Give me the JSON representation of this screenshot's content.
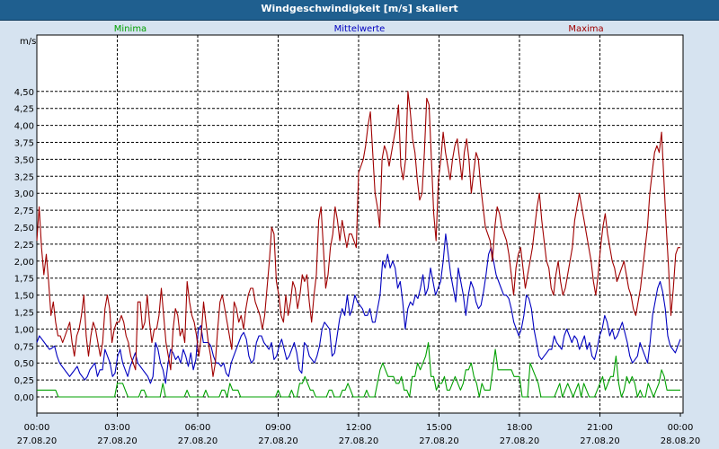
{
  "window": {
    "title": "Windgeschwindigkeit [m/s] skaliert"
  },
  "colors": {
    "background": "#d6e3f0",
    "plot_background": "#ffffff",
    "minima": "#00a000",
    "mittelwerte": "#0000c0",
    "maxima": "#a00000"
  },
  "chart_data": {
    "type": "line",
    "title": "Windgeschwindigkeit [m/s] skaliert",
    "ylabel": "m/s",
    "xlabel": "",
    "ylim": [
      -0.25,
      4.6
    ],
    "grid": true,
    "legend_placement": "top",
    "y_ticks": [
      "0,00",
      "0,25",
      "0,50",
      "0,75",
      "1,00",
      "1,25",
      "1,50",
      "1,75",
      "2,00",
      "2,25",
      "2,50",
      "2,75",
      "3,00",
      "3,25",
      "3,50",
      "3,75",
      "4,00",
      "4,25",
      "4,50"
    ],
    "x_ticks": [
      {
        "time": "00:00",
        "date": "27.08.20"
      },
      {
        "time": "03:00",
        "date": "27.08.20"
      },
      {
        "time": "06:00",
        "date": "27.08.20"
      },
      {
        "time": "09:00",
        "date": "27.08.20"
      },
      {
        "time": "12:00",
        "date": "27.08.20"
      },
      {
        "time": "15:00",
        "date": "27.08.20"
      },
      {
        "time": "18:00",
        "date": "27.08.20"
      },
      {
        "time": "21:00",
        "date": "27.08.20"
      },
      {
        "time": "00:00",
        "date": "28.08.20"
      }
    ],
    "series": [
      {
        "name": "Minima",
        "color": "#00a000",
        "values": [
          0.1,
          0.1,
          0.1,
          0.1,
          0.1,
          0.1,
          0.1,
          0.1,
          0.0,
          0.0,
          0.0,
          0.0,
          0.0,
          0.0,
          0.0,
          0.0,
          0.0,
          0.0,
          0.0,
          0.0,
          0.0,
          0.0,
          0.0,
          0.0,
          0.0,
          0.0,
          0.0,
          0.0,
          0.0,
          0.0,
          0.2,
          0.2,
          0.2,
          0.1,
          0.0,
          0.0,
          0.0,
          0.0,
          0.0,
          0.1,
          0.1,
          0.0,
          0.0,
          0.0,
          0.0,
          0.0,
          0.0,
          0.2,
          0.0,
          0.0,
          0.0,
          0.0,
          0.0,
          0.0,
          0.0,
          0.0,
          0.1,
          0.0,
          0.0,
          0.0,
          0.0,
          0.0,
          0.0,
          0.1,
          0.0,
          0.0,
          0.0,
          0.0,
          0.0,
          0.1,
          0.1,
          0.0,
          0.2,
          0.1,
          0.1,
          0.1,
          0.0,
          0.0,
          0.0,
          0.0,
          0.0,
          0.0,
          0.0,
          0.0,
          0.0,
          0.0,
          0.0,
          0.0,
          0.0,
          0.0,
          0.1,
          0.0,
          0.0,
          0.0,
          0.0,
          0.1,
          0.0,
          0.0,
          0.2,
          0.2,
          0.3,
          0.2,
          0.1,
          0.1,
          0.0,
          0.0,
          0.0,
          0.0,
          0.0,
          0.1,
          0.1,
          0.0,
          0.0,
          0.0,
          0.1,
          0.1,
          0.2,
          0.1,
          0.0,
          0.0,
          0.0,
          0.0,
          0.0,
          0.1,
          0.0,
          0.0,
          0.0,
          0.2,
          0.4,
          0.5,
          0.4,
          0.3,
          0.3,
          0.3,
          0.2,
          0.2,
          0.3,
          0.1,
          0.1,
          0.0,
          0.3,
          0.3,
          0.5,
          0.4,
          0.5,
          0.6,
          0.8,
          0.3,
          0.3,
          0.1,
          0.2,
          0.2,
          0.3,
          0.1,
          0.1,
          0.2,
          0.3,
          0.2,
          0.1,
          0.2,
          0.4,
          0.4,
          0.5,
          0.3,
          0.2,
          0.0,
          0.2,
          0.1,
          0.1,
          0.1,
          0.4,
          0.7,
          0.4,
          0.4,
          0.4,
          0.4,
          0.4,
          0.4,
          0.3,
          0.3,
          0.3,
          0.0,
          0.0,
          0.0,
          0.5,
          0.4,
          0.3,
          0.2,
          0.0,
          0.0,
          0.0,
          0.0,
          0.0,
          0.0,
          0.1,
          0.2,
          0.0,
          0.1,
          0.2,
          0.1,
          0.0,
          0.1,
          0.2,
          0.0,
          0.2,
          0.1,
          0.0,
          0.0,
          0.0,
          0.1,
          0.2,
          0.3,
          0.1,
          0.2,
          0.3,
          0.3,
          0.6,
          0.2,
          0.0,
          0.1,
          0.3,
          0.2,
          0.3,
          0.2,
          0.0,
          0.1,
          0.0,
          0.0,
          0.2,
          0.1,
          0.0,
          0.1,
          0.2,
          0.4,
          0.3,
          0.1,
          0.1,
          0.1,
          0.1,
          0.1,
          0.1
        ]
      },
      {
        "name": "Mittelwerte",
        "color": "#0000c0",
        "values": [
          0.8,
          0.9,
          0.85,
          0.8,
          0.75,
          0.7,
          0.72,
          0.75,
          0.6,
          0.5,
          0.45,
          0.4,
          0.35,
          0.3,
          0.35,
          0.4,
          0.45,
          0.35,
          0.3,
          0.25,
          0.3,
          0.4,
          0.45,
          0.5,
          0.3,
          0.4,
          0.4,
          0.7,
          0.6,
          0.5,
          0.3,
          0.35,
          0.6,
          0.7,
          0.5,
          0.4,
          0.3,
          0.45,
          0.55,
          0.65,
          0.5,
          0.45,
          0.4,
          0.35,
          0.3,
          0.2,
          0.3,
          0.8,
          0.7,
          0.5,
          0.4,
          0.2,
          0.5,
          0.7,
          0.65,
          0.55,
          0.6,
          0.5,
          0.7,
          0.6,
          0.45,
          0.65,
          0.4,
          0.55,
          1.0,
          1.05,
          0.8,
          0.8,
          0.8,
          0.75,
          0.6,
          0.5,
          0.5,
          0.45,
          0.5,
          0.35,
          0.3,
          0.5,
          0.6,
          0.7,
          0.8,
          0.9,
          0.95,
          0.85,
          0.6,
          0.5,
          0.55,
          0.8,
          0.9,
          0.9,
          0.8,
          0.75,
          0.7,
          0.8,
          0.55,
          0.6,
          0.75,
          0.85,
          0.7,
          0.55,
          0.6,
          0.7,
          0.8,
          0.65,
          0.4,
          0.35,
          0.8,
          0.75,
          0.6,
          0.55,
          0.5,
          0.6,
          0.75,
          1.0,
          1.1,
          1.05,
          1.0,
          0.6,
          0.65,
          0.9,
          1.15,
          1.3,
          1.2,
          1.5,
          1.2,
          1.3,
          1.5,
          1.4,
          1.35,
          1.3,
          1.2,
          1.2,
          1.3,
          1.1,
          1.1,
          1.3,
          1.5,
          2.0,
          1.9,
          2.1,
          1.9,
          2.0,
          1.9,
          1.6,
          1.7,
          1.4,
          1.0,
          1.3,
          1.4,
          1.35,
          1.5,
          1.45,
          1.6,
          1.8,
          1.5,
          1.6,
          1.9,
          1.7,
          1.5,
          1.6,
          1.7,
          2.0,
          2.4,
          2.1,
          1.8,
          1.6,
          1.4,
          1.9,
          1.7,
          1.5,
          1.2,
          1.5,
          1.7,
          1.6,
          1.4,
          1.3,
          1.35,
          1.55,
          1.8,
          2.1,
          2.2,
          2.0,
          1.8,
          1.7,
          1.6,
          1.5,
          1.5,
          1.45,
          1.3,
          1.1,
          1.0,
          0.9,
          1.0,
          1.2,
          1.5,
          1.45,
          1.3,
          1.0,
          0.8,
          0.6,
          0.55,
          0.6,
          0.65,
          0.7,
          0.7,
          0.9,
          0.8,
          0.75,
          0.7,
          0.9,
          1.0,
          0.9,
          0.8,
          0.9,
          0.85,
          0.7,
          0.8,
          0.9,
          0.7,
          0.8,
          0.6,
          0.55,
          0.7,
          0.9,
          1.0,
          1.2,
          1.1,
          0.9,
          1.0,
          0.85,
          0.9,
          1.0,
          1.1,
          0.95,
          0.8,
          0.6,
          0.5,
          0.55,
          0.6,
          0.8,
          0.7,
          0.6,
          0.5,
          0.8,
          1.2,
          1.4,
          1.6,
          1.7,
          1.55,
          1.3,
          0.9,
          0.75,
          0.7,
          0.65,
          0.75,
          0.85
        ]
      },
      {
        "name": "Maxima",
        "color": "#a00000",
        "values": [
          2.3,
          2.8,
          2.2,
          1.8,
          2.1,
          1.7,
          1.2,
          1.4,
          1.1,
          0.9,
          0.9,
          0.8,
          0.9,
          1.0,
          1.1,
          0.8,
          0.6,
          0.9,
          1.0,
          1.2,
          1.5,
          0.9,
          0.6,
          0.9,
          1.1,
          1.0,
          0.8,
          0.6,
          0.8,
          1.3,
          1.5,
          1.3,
          0.8,
          1.0,
          1.1,
          1.1,
          1.2,
          1.1,
          0.9,
          0.8,
          0.6,
          0.5,
          0.4,
          1.4,
          1.4,
          1.0,
          1.1,
          1.5,
          1.1,
          0.8,
          1.0,
          1.0,
          1.2,
          1.6,
          1.2,
          0.8,
          0.6,
          0.4,
          1.0,
          1.3,
          1.2,
          0.9,
          1.0,
          0.8,
          1.7,
          1.4,
          1.2,
          1.1,
          0.9,
          0.6,
          0.9,
          1.4,
          1.1,
          0.8,
          0.6,
          0.3,
          0.5,
          1.0,
          1.4,
          1.5,
          1.3,
          1.1,
          0.9,
          0.7,
          1.4,
          1.3,
          1.1,
          1.2,
          1.0,
          1.3,
          1.5,
          1.6,
          1.6,
          1.4,
          1.3,
          1.2,
          1.0,
          1.2,
          1.6,
          2.0,
          2.5,
          2.4,
          1.7,
          1.5,
          1.2,
          1.1,
          1.5,
          1.2,
          1.4,
          1.7,
          1.6,
          1.3,
          1.5,
          1.8,
          1.7,
          1.8,
          1.4,
          1.1,
          1.5,
          1.8,
          2.6,
          2.8,
          2.2,
          1.6,
          1.8,
          2.2,
          2.4,
          2.8,
          2.6,
          2.3,
          2.6,
          2.4,
          2.2,
          2.4,
          2.4,
          2.3,
          2.2,
          3.3,
          3.4,
          3.5,
          3.7,
          4.0,
          4.2,
          3.6,
          3.0,
          2.8,
          2.5,
          3.5,
          3.7,
          3.6,
          3.4,
          3.6,
          3.8,
          4.0,
          4.3,
          3.4,
          3.2,
          3.5,
          4.5,
          4.2,
          3.8,
          3.6,
          3.2,
          2.9,
          3.0,
          3.6,
          4.4,
          4.3,
          3.5,
          2.7,
          2.3,
          3.2,
          3.5,
          3.9,
          3.6,
          3.4,
          3.2,
          3.5,
          3.7,
          3.8,
          3.5,
          3.2,
          3.6,
          3.8,
          3.5,
          3.0,
          3.3,
          3.6,
          3.5,
          3.1,
          2.8,
          2.5,
          2.4,
          2.3,
          2.0,
          2.5,
          2.8,
          2.7,
          2.5,
          2.4,
          2.3,
          2.1,
          1.8,
          1.5,
          1.9,
          2.1,
          2.2,
          1.9,
          1.6,
          1.8,
          2.0,
          2.2,
          2.5,
          2.8,
          3.0,
          2.6,
          2.3,
          2.0,
          1.9,
          1.6,
          1.5,
          1.8,
          2.0,
          1.7,
          1.5,
          1.6,
          1.8,
          2.0,
          2.2,
          2.6,
          2.8,
          3.0,
          2.8,
          2.6,
          2.4,
          2.2,
          2.0,
          1.7,
          1.5,
          1.8,
          2.2,
          2.5,
          2.7,
          2.4,
          2.2,
          2.0,
          1.9,
          1.7,
          1.8,
          1.9,
          2.0,
          1.8,
          1.6,
          1.5,
          1.3,
          1.2,
          1.4,
          1.6,
          1.9,
          2.2,
          2.5,
          3.0,
          3.3,
          3.6,
          3.7,
          3.6,
          3.9,
          3.2,
          2.5,
          1.9,
          1.2,
          1.6,
          2.1,
          2.2,
          2.2
        ]
      }
    ]
  }
}
